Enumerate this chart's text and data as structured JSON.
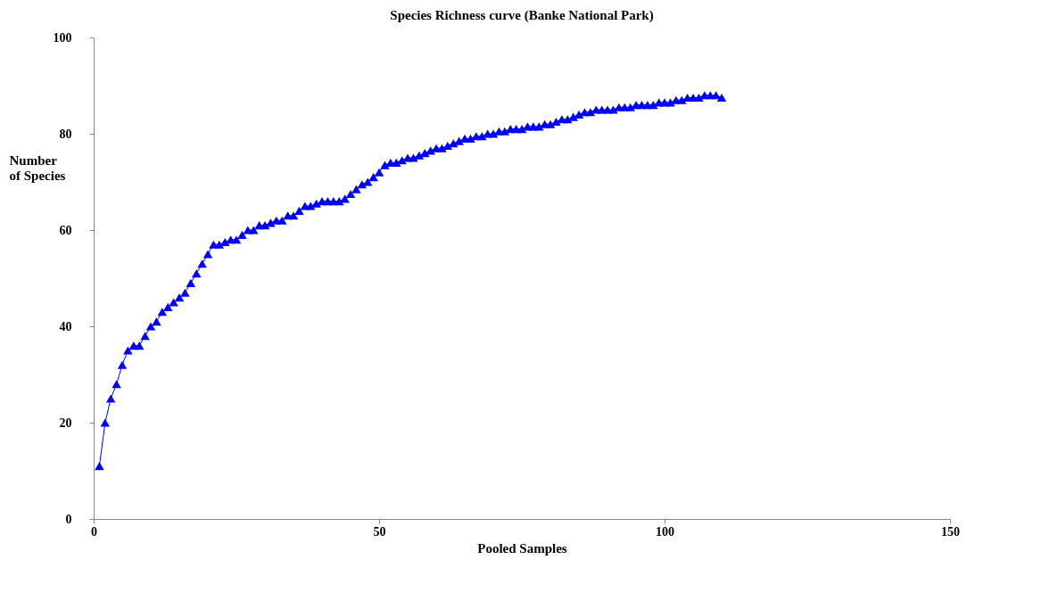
{
  "chart_data": {
    "type": "line",
    "title": "Species Richness curve (Banke National Park)",
    "xlabel": "Pooled Samples",
    "ylabel": "Number of Species",
    "x": [
      1,
      2,
      3,
      4,
      5,
      6,
      7,
      8,
      9,
      10,
      11,
      12,
      13,
      14,
      15,
      16,
      17,
      18,
      19,
      20,
      21,
      22,
      23,
      24,
      25,
      26,
      27,
      28,
      29,
      30,
      31,
      32,
      33,
      34,
      35,
      36,
      37,
      38,
      39,
      40,
      41,
      42,
      43,
      44,
      45,
      46,
      47,
      48,
      49,
      50,
      51,
      52,
      53,
      54,
      55,
      56,
      57,
      58,
      59,
      60,
      61,
      62,
      63,
      64,
      65,
      66,
      67,
      68,
      69,
      70,
      71,
      72,
      73,
      74,
      75,
      76,
      77,
      78,
      79,
      80,
      81,
      82,
      83,
      84,
      85,
      86,
      87,
      88,
      89,
      90,
      91,
      92,
      93,
      94,
      95,
      96,
      97,
      98,
      99,
      100,
      101,
      102,
      103,
      104,
      105,
      106,
      107,
      108,
      109,
      110
    ],
    "series": [
      {
        "color": "#0000ff",
        "values": [
          11,
          20,
          25,
          28,
          32,
          35,
          36,
          36,
          38,
          40,
          41,
          43,
          44,
          45,
          46,
          47,
          49,
          51,
          53,
          55,
          57,
          57,
          57.5,
          58,
          58,
          59,
          60,
          60,
          61,
          61,
          61.5,
          62,
          62,
          63,
          63,
          64,
          65,
          65,
          65.5,
          66,
          66,
          66,
          66,
          66.5,
          67.5,
          68.5,
          69.5,
          70,
          71,
          72,
          73.5,
          74,
          74,
          74.5,
          75,
          75,
          75.5,
          76,
          76.5,
          77,
          77,
          77.5,
          78,
          78.5,
          79,
          79,
          79.5,
          79.5,
          80,
          80,
          80.5,
          80.5,
          81,
          81,
          81,
          81.5,
          81.5,
          81.5,
          82,
          82,
          82.5,
          83,
          83,
          83.5,
          84,
          84.5,
          84.5,
          85,
          85,
          85,
          85,
          85.5,
          85.5,
          85.5,
          86,
          86,
          86,
          86,
          86.5,
          86.5,
          86.5,
          87,
          87,
          87.5,
          87.5,
          87.5,
          88,
          88,
          88,
          87.5
        ]
      }
    ],
    "xlim": [
      0,
      150
    ],
    "xticks": [
      0,
      50,
      100,
      150
    ],
    "ylim": [
      0,
      100
    ],
    "yticks": [
      0,
      20,
      40,
      60,
      80,
      100
    ],
    "marker": "triangle",
    "line_style": "solid",
    "grid": false,
    "legend": false
  }
}
